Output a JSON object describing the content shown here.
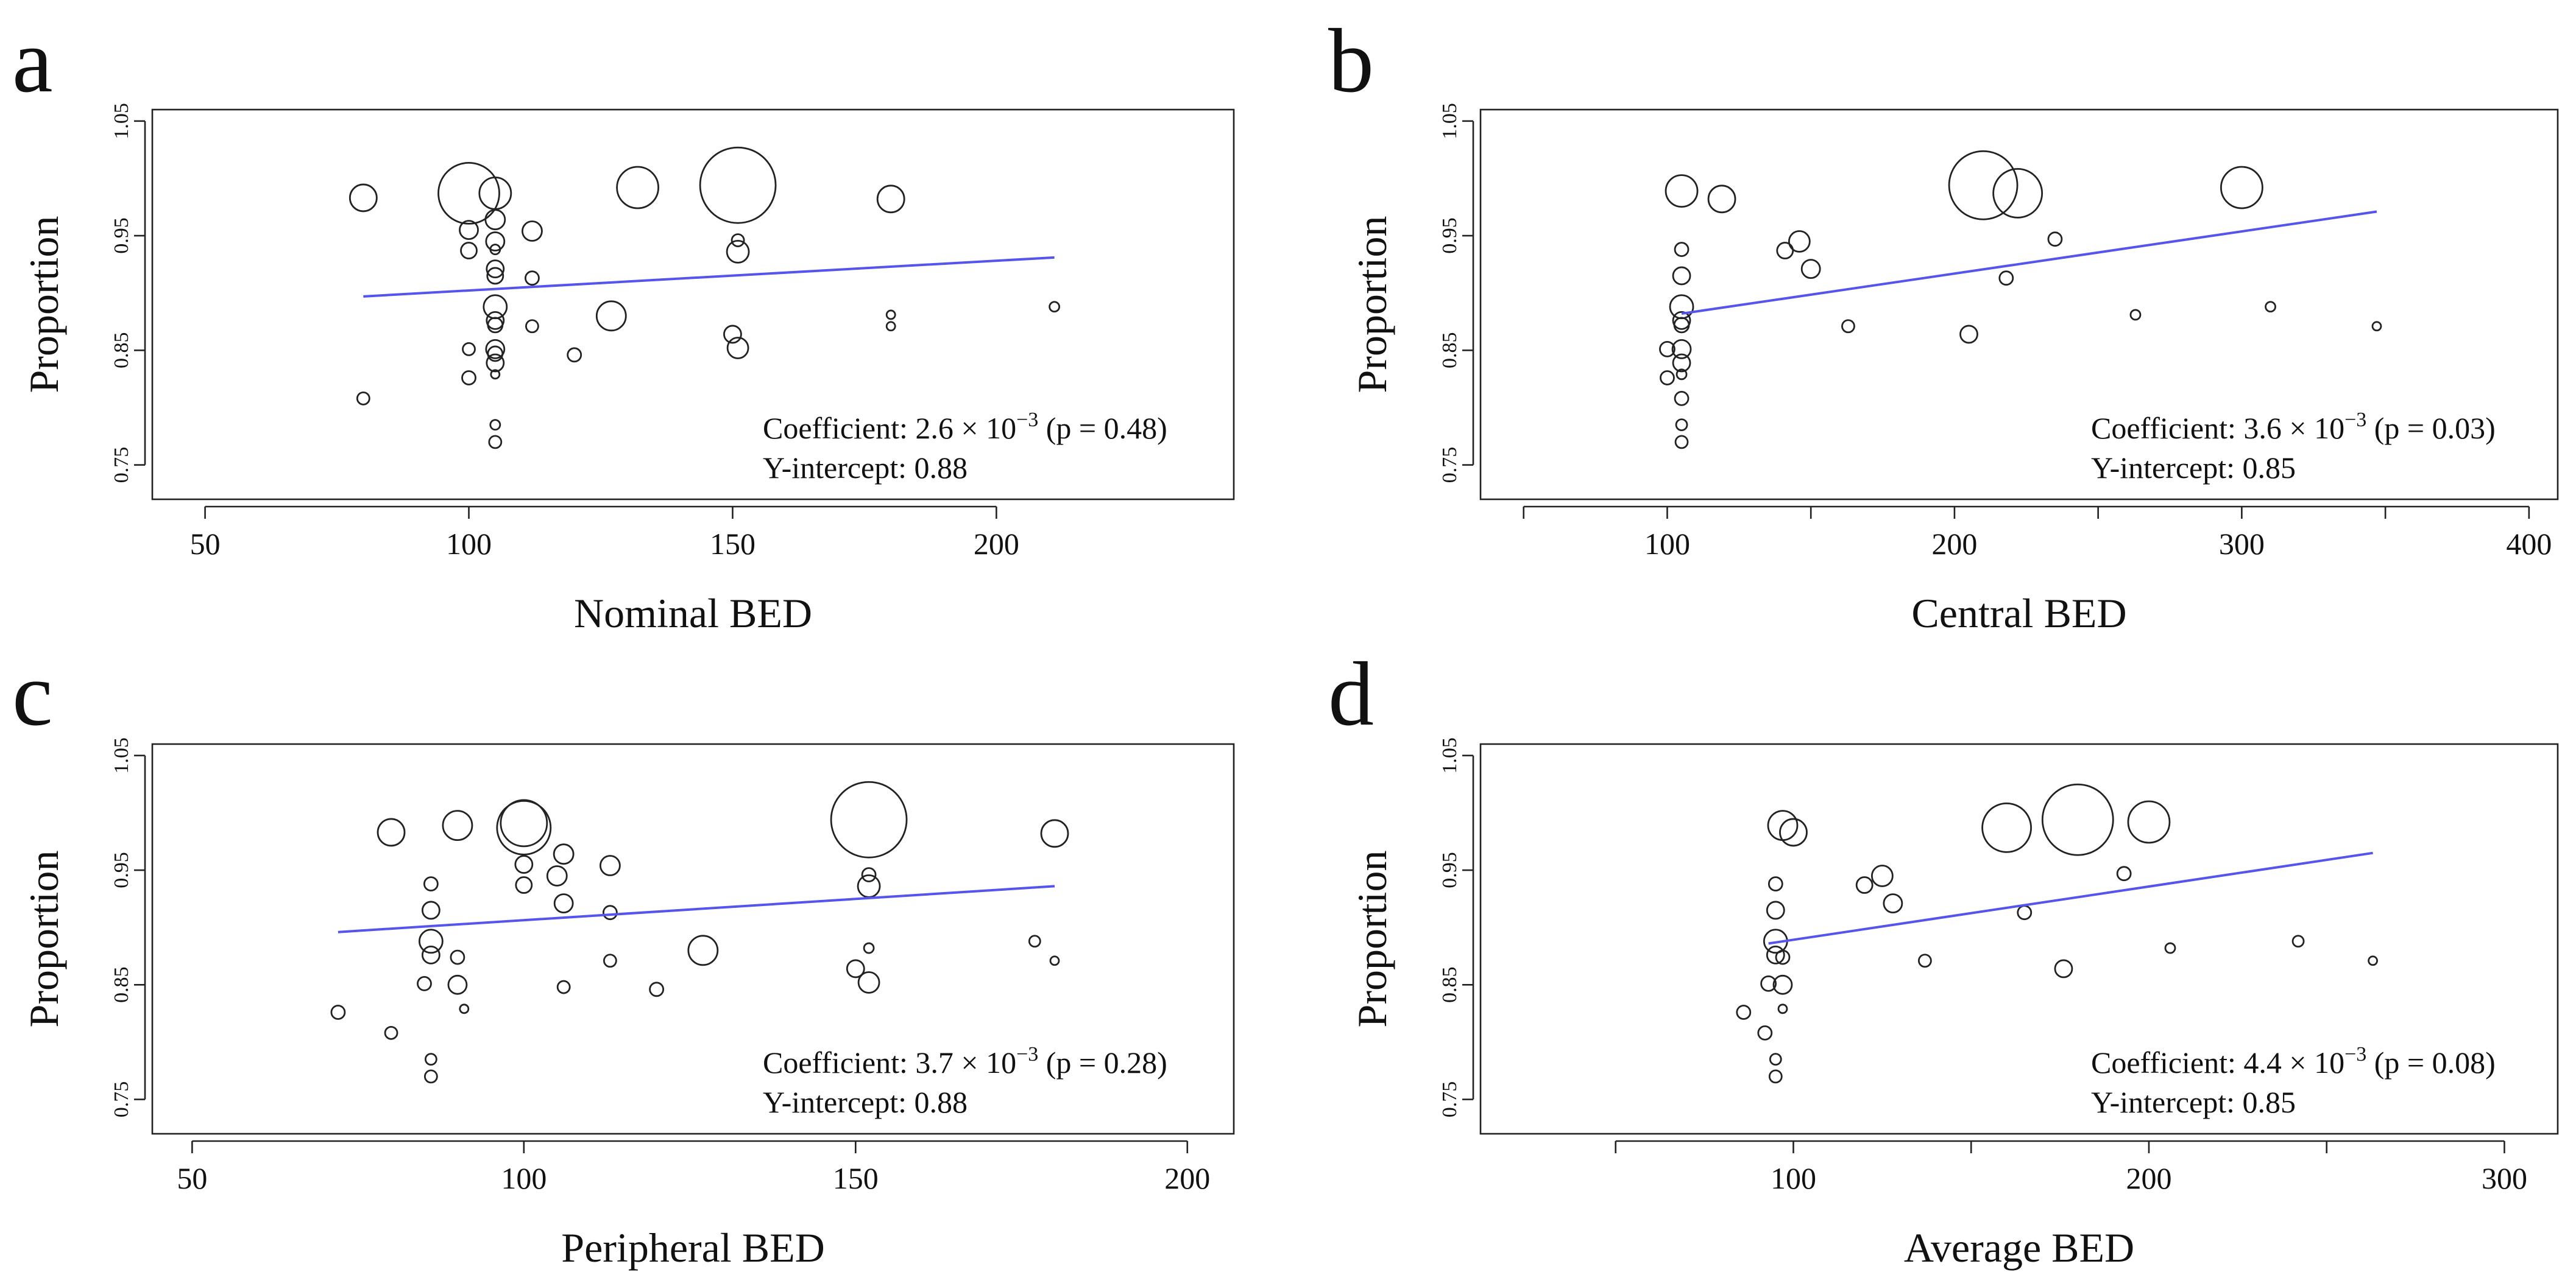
{
  "chart_data": [
    {
      "letter": "a",
      "type": "scatter",
      "xlabel": "Nominal BED",
      "ylabel": "Proportion",
      "xlim": [
        40,
        245
      ],
      "ylim": [
        0.72,
        1.06
      ],
      "xticks": [
        50,
        100,
        150,
        200
      ],
      "yticks": [
        0.75,
        0.85,
        0.95,
        1.05
      ],
      "ytick_labels": [
        "0.75",
        "0.85",
        "0.95",
        "1.05"
      ],
      "regression": {
        "x": [
          80,
          211
        ],
        "y": [
          0.897,
          0.931
        ]
      },
      "annotation": {
        "prefix": "Coefficient: ",
        "mantissa": "2.6 × 10",
        "exponent": "−3",
        "suffix": " (p = 0.48)",
        "intercept": "Y-intercept: 0.88"
      },
      "points": [
        {
          "x": 80,
          "y": 0.983,
          "s": 22
        },
        {
          "x": 80,
          "y": 0.808,
          "s": 10
        },
        {
          "x": 100,
          "y": 0.987,
          "s": 50
        },
        {
          "x": 100,
          "y": 0.955,
          "s": 15
        },
        {
          "x": 100,
          "y": 0.937,
          "s": 13
        },
        {
          "x": 100,
          "y": 0.851,
          "s": 10
        },
        {
          "x": 100,
          "y": 0.826,
          "s": 11
        },
        {
          "x": 105,
          "y": 0.987,
          "s": 26
        },
        {
          "x": 105,
          "y": 0.964,
          "s": 16
        },
        {
          "x": 105,
          "y": 0.945,
          "s": 15
        },
        {
          "x": 105,
          "y": 0.938,
          "s": 8
        },
        {
          "x": 105,
          "y": 0.921,
          "s": 14
        },
        {
          "x": 105,
          "y": 0.915,
          "s": 13
        },
        {
          "x": 105,
          "y": 0.888,
          "s": 19
        },
        {
          "x": 105,
          "y": 0.876,
          "s": 14
        },
        {
          "x": 105,
          "y": 0.872,
          "s": 12
        },
        {
          "x": 105,
          "y": 0.851,
          "s": 15
        },
        {
          "x": 105,
          "y": 0.847,
          "s": 12
        },
        {
          "x": 105,
          "y": 0.839,
          "s": 14
        },
        {
          "x": 105,
          "y": 0.829,
          "s": 7
        },
        {
          "x": 105,
          "y": 0.785,
          "s": 8
        },
        {
          "x": 105,
          "y": 0.77,
          "s": 10
        },
        {
          "x": 112,
          "y": 0.954,
          "s": 16
        },
        {
          "x": 112,
          "y": 0.913,
          "s": 11
        },
        {
          "x": 112,
          "y": 0.871,
          "s": 10
        },
        {
          "x": 120,
          "y": 0.846,
          "s": 11
        },
        {
          "x": 127,
          "y": 0.88,
          "s": 24
        },
        {
          "x": 132,
          "y": 0.992,
          "s": 34
        },
        {
          "x": 150,
          "y": 0.864,
          "s": 14
        },
        {
          "x": 151,
          "y": 0.994,
          "s": 62
        },
        {
          "x": 151,
          "y": 0.946,
          "s": 10
        },
        {
          "x": 151,
          "y": 0.936,
          "s": 18
        },
        {
          "x": 151,
          "y": 0.852,
          "s": 17
        },
        {
          "x": 180,
          "y": 0.982,
          "s": 22
        },
        {
          "x": 180,
          "y": 0.881,
          "s": 7
        },
        {
          "x": 180,
          "y": 0.871,
          "s": 7
        },
        {
          "x": 211,
          "y": 0.888,
          "s": 8
        }
      ]
    },
    {
      "letter": "b",
      "type": "scatter",
      "xlabel": "Central BED",
      "ylabel": "Proportion",
      "xlim": [
        35,
        410
      ],
      "ylim": [
        0.72,
        1.06
      ],
      "xticks": [
        100,
        200,
        300,
        400
      ],
      "minor_xticks": [
        50,
        150,
        250,
        350
      ],
      "yticks": [
        0.75,
        0.85,
        0.95,
        1.05
      ],
      "ytick_labels": [
        "0.75",
        "0.85",
        "0.95",
        "1.05"
      ],
      "regression": {
        "x": [
          105,
          347
        ],
        "y": [
          0.882,
          0.971
        ]
      },
      "annotation": {
        "prefix": "Coefficient: ",
        "mantissa": "3.6 × 10",
        "exponent": "−3",
        "suffix": " (p = 0.03)",
        "intercept": "Y-intercept: 0.85"
      },
      "points": [
        {
          "x": 105,
          "y": 0.989,
          "s": 26
        },
        {
          "x": 105,
          "y": 0.938,
          "s": 11
        },
        {
          "x": 105,
          "y": 0.915,
          "s": 14
        },
        {
          "x": 105,
          "y": 0.888,
          "s": 19
        },
        {
          "x": 105,
          "y": 0.876,
          "s": 14
        },
        {
          "x": 105,
          "y": 0.872,
          "s": 12
        },
        {
          "x": 105,
          "y": 0.851,
          "s": 15
        },
        {
          "x": 105,
          "y": 0.839,
          "s": 14
        },
        {
          "x": 105,
          "y": 0.829,
          "s": 8
        },
        {
          "x": 105,
          "y": 0.808,
          "s": 11
        },
        {
          "x": 105,
          "y": 0.785,
          "s": 9
        },
        {
          "x": 105,
          "y": 0.77,
          "s": 10
        },
        {
          "x": 100,
          "y": 0.851,
          "s": 12
        },
        {
          "x": 100,
          "y": 0.826,
          "s": 11
        },
        {
          "x": 119,
          "y": 0.982,
          "s": 22
        },
        {
          "x": 141,
          "y": 0.937,
          "s": 13
        },
        {
          "x": 146,
          "y": 0.945,
          "s": 17
        },
        {
          "x": 150,
          "y": 0.921,
          "s": 15
        },
        {
          "x": 163,
          "y": 0.871,
          "s": 10
        },
        {
          "x": 205,
          "y": 0.864,
          "s": 14
        },
        {
          "x": 210,
          "y": 0.994,
          "s": 56
        },
        {
          "x": 218,
          "y": 0.913,
          "s": 11
        },
        {
          "x": 222,
          "y": 0.987,
          "s": 40
        },
        {
          "x": 235,
          "y": 0.947,
          "s": 11
        },
        {
          "x": 263,
          "y": 0.881,
          "s": 8
        },
        {
          "x": 300,
          "y": 0.992,
          "s": 34
        },
        {
          "x": 310,
          "y": 0.888,
          "s": 8
        },
        {
          "x": 347,
          "y": 0.871,
          "s": 7
        }
      ]
    },
    {
      "letter": "c",
      "type": "scatter",
      "xlabel": "Peripheral BED",
      "ylabel": "Proportion",
      "xlim": [
        44,
        207
      ],
      "ylim": [
        0.72,
        1.06
      ],
      "xticks": [
        50,
        100,
        150,
        200
      ],
      "yticks": [
        0.75,
        0.85,
        0.95,
        1.05
      ],
      "ytick_labels": [
        "0.75",
        "0.85",
        "0.95",
        "1.05"
      ],
      "regression": {
        "x": [
          72,
          180
        ],
        "y": [
          0.896,
          0.936
        ]
      },
      "annotation": {
        "prefix": "Coefficient: ",
        "mantissa": "3.7 × 10",
        "exponent": "−3",
        "suffix": " (p = 0.28)",
        "intercept": "Y-intercept: 0.88"
      },
      "points": [
        {
          "x": 72,
          "y": 0.826,
          "s": 11
        },
        {
          "x": 80,
          "y": 0.983,
          "s": 22
        },
        {
          "x": 80,
          "y": 0.808,
          "s": 10
        },
        {
          "x": 86,
          "y": 0.938,
          "s": 11
        },
        {
          "x": 86,
          "y": 0.915,
          "s": 14
        },
        {
          "x": 86,
          "y": 0.888,
          "s": 19
        },
        {
          "x": 86,
          "y": 0.876,
          "s": 14
        },
        {
          "x": 85,
          "y": 0.851,
          "s": 11
        },
        {
          "x": 86,
          "y": 0.785,
          "s": 9
        },
        {
          "x": 86,
          "y": 0.77,
          "s": 10
        },
        {
          "x": 90,
          "y": 0.989,
          "s": 24
        },
        {
          "x": 90,
          "y": 0.874,
          "s": 11
        },
        {
          "x": 90,
          "y": 0.85,
          "s": 15
        },
        {
          "x": 91,
          "y": 0.829,
          "s": 7
        },
        {
          "x": 100,
          "y": 0.991,
          "s": 38
        },
        {
          "x": 100,
          "y": 0.987,
          "s": 44
        },
        {
          "x": 100,
          "y": 0.955,
          "s": 14
        },
        {
          "x": 100,
          "y": 0.937,
          "s": 13
        },
        {
          "x": 106,
          "y": 0.964,
          "s": 16
        },
        {
          "x": 105,
          "y": 0.945,
          "s": 16
        },
        {
          "x": 106,
          "y": 0.921,
          "s": 15
        },
        {
          "x": 106,
          "y": 0.848,
          "s": 10
        },
        {
          "x": 113,
          "y": 0.954,
          "s": 16
        },
        {
          "x": 113,
          "y": 0.913,
          "s": 11
        },
        {
          "x": 113,
          "y": 0.871,
          "s": 10
        },
        {
          "x": 120,
          "y": 0.846,
          "s": 11
        },
        {
          "x": 127,
          "y": 0.88,
          "s": 24
        },
        {
          "x": 150,
          "y": 0.864,
          "s": 14
        },
        {
          "x": 152,
          "y": 0.994,
          "s": 62
        },
        {
          "x": 152,
          "y": 0.946,
          "s": 11
        },
        {
          "x": 152,
          "y": 0.936,
          "s": 18
        },
        {
          "x": 152,
          "y": 0.882,
          "s": 8
        },
        {
          "x": 152,
          "y": 0.852,
          "s": 17
        },
        {
          "x": 177,
          "y": 0.888,
          "s": 9
        },
        {
          "x": 180,
          "y": 0.982,
          "s": 22
        },
        {
          "x": 180,
          "y": 0.871,
          "s": 7
        }
      ]
    },
    {
      "letter": "d",
      "type": "scatter",
      "xlabel": "Average BED",
      "ylabel": "Proportion",
      "xlim": [
        12,
        315
      ],
      "ylim": [
        0.72,
        1.06
      ],
      "xticks": [
        100,
        200,
        300
      ],
      "minor_xticks": [
        50,
        150,
        250
      ],
      "yticks": [
        0.75,
        0.85,
        0.95,
        1.05
      ],
      "ytick_labels": [
        "0.75",
        "0.85",
        "0.95",
        "1.05"
      ],
      "regression": {
        "x": [
          93,
          263
        ],
        "y": [
          0.886,
          0.965
        ]
      },
      "annotation": {
        "prefix": "Coefficient: ",
        "mantissa": "4.4 × 10",
        "exponent": "−3",
        "suffix": " (p = 0.08)",
        "intercept": "Y-intercept: 0.85"
      },
      "points": [
        {
          "x": 86,
          "y": 0.826,
          "s": 11
        },
        {
          "x": 92,
          "y": 0.808,
          "s": 11
        },
        {
          "x": 93,
          "y": 0.851,
          "s": 12
        },
        {
          "x": 95,
          "y": 0.938,
          "s": 11
        },
        {
          "x": 95,
          "y": 0.915,
          "s": 14
        },
        {
          "x": 95,
          "y": 0.888,
          "s": 19
        },
        {
          "x": 95,
          "y": 0.876,
          "s": 14
        },
        {
          "x": 95,
          "y": 0.785,
          "s": 9
        },
        {
          "x": 95,
          "y": 0.77,
          "s": 10
        },
        {
          "x": 97,
          "y": 0.989,
          "s": 24
        },
        {
          "x": 97,
          "y": 0.874,
          "s": 11
        },
        {
          "x": 97,
          "y": 0.85,
          "s": 15
        },
        {
          "x": 97,
          "y": 0.829,
          "s": 7
        },
        {
          "x": 100,
          "y": 0.983,
          "s": 22
        },
        {
          "x": 120,
          "y": 0.937,
          "s": 13
        },
        {
          "x": 125,
          "y": 0.945,
          "s": 17
        },
        {
          "x": 128,
          "y": 0.921,
          "s": 15
        },
        {
          "x": 137,
          "y": 0.871,
          "s": 10
        },
        {
          "x": 160,
          "y": 0.987,
          "s": 40
        },
        {
          "x": 165,
          "y": 0.913,
          "s": 11
        },
        {
          "x": 176,
          "y": 0.864,
          "s": 14
        },
        {
          "x": 180,
          "y": 0.994,
          "s": 58
        },
        {
          "x": 193,
          "y": 0.947,
          "s": 11
        },
        {
          "x": 200,
          "y": 0.992,
          "s": 34
        },
        {
          "x": 206,
          "y": 0.882,
          "s": 8
        },
        {
          "x": 242,
          "y": 0.888,
          "s": 9
        },
        {
          "x": 263,
          "y": 0.871,
          "s": 7
        }
      ]
    }
  ]
}
